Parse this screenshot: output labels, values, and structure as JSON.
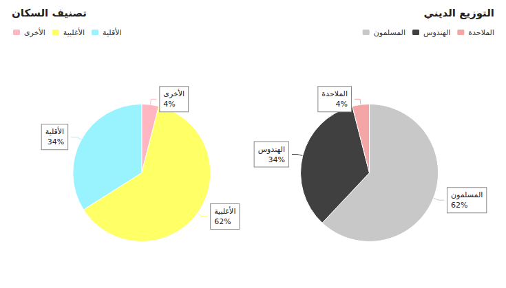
{
  "chart_data": [
    {
      "type": "pie",
      "title": "تصنيف السكان",
      "categories": [
        "الأخرى",
        "الأغلبية",
        "الأقلية"
      ],
      "values": [
        4,
        62,
        34
      ],
      "value_labels": [
        "4%",
        "62%",
        "34%"
      ],
      "colors": [
        "#ffb6c1",
        "#ffff66",
        "#99f3ff"
      ],
      "data_labels": true,
      "legend": "top"
    },
    {
      "type": "pie",
      "title": "التوزيع الديني",
      "categories": [
        "المسلمون",
        "الهندوس",
        "الملاحدة"
      ],
      "values": [
        62,
        34,
        4
      ],
      "value_labels": [
        "62%",
        "34%",
        "4%"
      ],
      "colors": [
        "#c8c8c8",
        "#404040",
        "#f4a6a6"
      ],
      "data_labels": true,
      "legend": "top"
    }
  ]
}
